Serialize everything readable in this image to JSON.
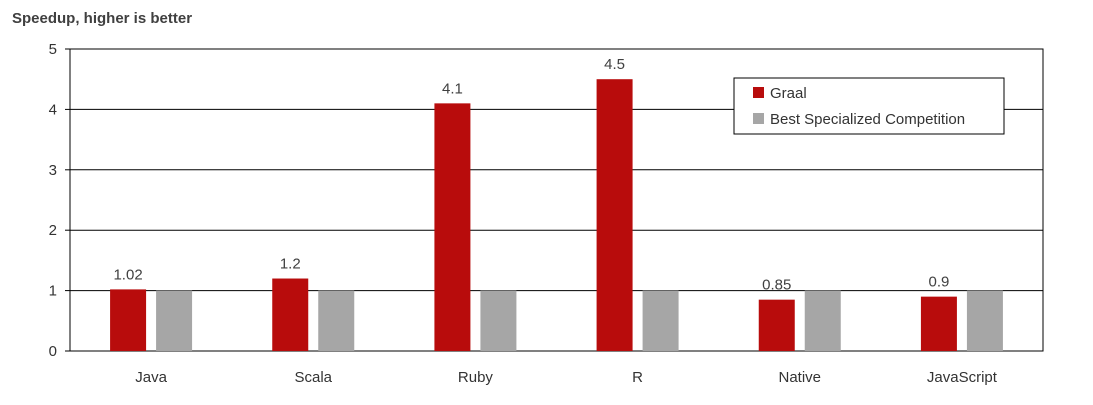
{
  "chart_data": {
    "type": "bar",
    "title": "",
    "ylabel": "Speedup, higher is better",
    "xlabel": "",
    "categories": [
      "Java",
      "Scala",
      "Ruby",
      "R",
      "Native",
      "JavaScript"
    ],
    "series": [
      {
        "name": "Graal",
        "color": "#b80c0c",
        "values": [
          1.02,
          1.2,
          4.1,
          4.5,
          0.85,
          0.9
        ],
        "labels": [
          "1.02",
          "1.2",
          "4.1",
          "4.5",
          "0.85",
          "0.9"
        ]
      },
      {
        "name": "Best Specialized Competition",
        "color": "#a6a6a6",
        "values": [
          1,
          1,
          1,
          1,
          1,
          1
        ]
      }
    ],
    "ylim": [
      0,
      5
    ],
    "yticks": [
      "0",
      "1",
      "2",
      "3",
      "4",
      "5"
    ],
    "grid": true,
    "legend_position": "top-right"
  }
}
